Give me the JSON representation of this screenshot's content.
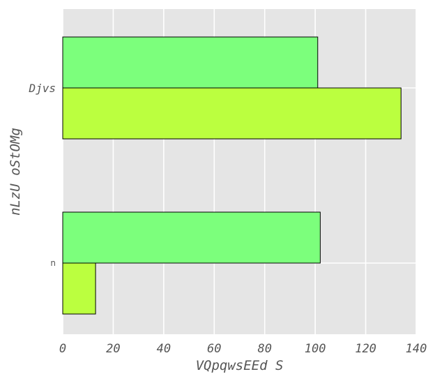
{
  "chart_data": {
    "type": "bar",
    "orientation": "horizontal",
    "xlabel": "VQpqwsEEd S",
    "ylabel": "nLzU oStOMg",
    "categories": [
      "Djvs",
      "n"
    ],
    "series": [
      {
        "color": "#7cff7c",
        "values": [
          101,
          102
        ]
      },
      {
        "color": "#bbff3f",
        "values": [
          134,
          13
        ]
      }
    ],
    "xlim": [
      0,
      140
    ],
    "xticks": [
      "0",
      "20",
      "40",
      "60",
      "80",
      "100",
      "120",
      "140"
    ],
    "grid": true,
    "background": "#e5e5e5"
  }
}
